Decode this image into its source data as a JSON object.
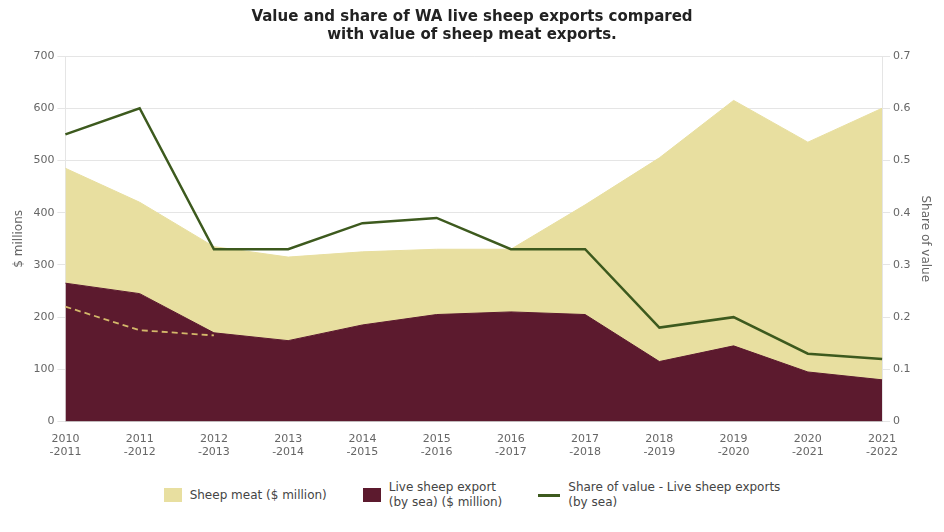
{
  "chart_data": {
    "type": "area",
    "title": "Value and share of WA live sheep exports compared\nwith value of sheep meat exports.",
    "categories": [
      "2010\n-2011",
      "2011\n-2012",
      "2012\n-2013",
      "2013\n-2014",
      "2014\n-2015",
      "2015\n-2016",
      "2016\n-2017",
      "2017\n-2018",
      "2018\n-2019",
      "2019\n-2020",
      "2020\n-2021",
      "2021\n-2022"
    ],
    "series": [
      {
        "name": "Sheep meat ($ million)",
        "type": "area",
        "color": "#e8dfa0",
        "values": [
          220,
          175,
          165,
          160,
          140,
          125,
          120,
          210,
          390,
          470,
          440,
          520
        ]
      },
      {
        "name": "Live sheep export\n(by sea) ($ million)",
        "type": "area",
        "color": "#5c1a2e",
        "values": [
          265,
          245,
          170,
          155,
          185,
          205,
          210,
          205,
          115,
          145,
          95,
          80
        ]
      },
      {
        "name": "Share of value - Live sheep exports\n(by sea)",
        "type": "line",
        "axis": "y2",
        "color": "#3d5a1e",
        "values": [
          0.55,
          0.6,
          0.33,
          0.33,
          0.38,
          0.39,
          0.33,
          0.33,
          0.18,
          0.2,
          0.13,
          0.12
        ]
      },
      {
        "type": "line",
        "line_style": "dashed",
        "color": "#d4b86a",
        "values": [
          220,
          175,
          165,
          null,
          null,
          null,
          null,
          null,
          null,
          null,
          null,
          null
        ]
      }
    ],
    "stacked": true,
    "ylabel": "$ millions",
    "y2label": "Share of value",
    "ylim": [
      0,
      700
    ],
    "yticks": [
      0,
      100,
      200,
      300,
      400,
      500,
      600,
      700
    ],
    "y2lim": [
      0,
      0.7
    ],
    "y2ticks": [
      0,
      0.1,
      0.2,
      0.3,
      0.4,
      0.5,
      0.6,
      0.7
    ],
    "grid": true,
    "legend": "bottom"
  }
}
